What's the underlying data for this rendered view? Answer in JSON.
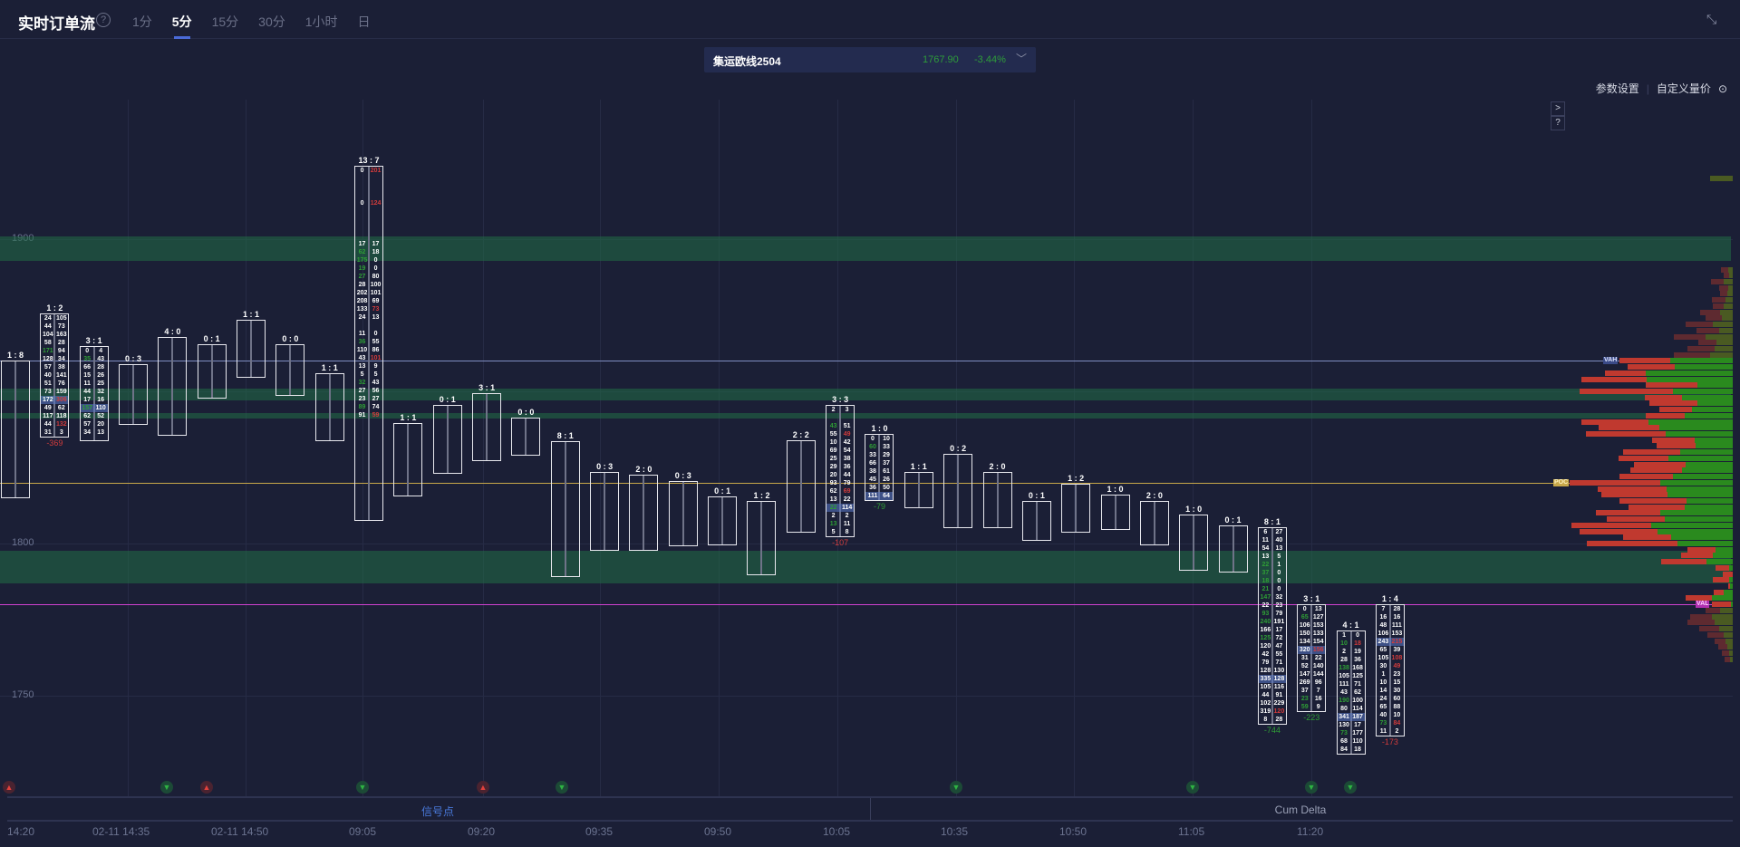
{
  "header": {
    "title": "实时订单流",
    "help": "?",
    "tabs": [
      {
        "label": "1分"
      },
      {
        "label": "5分",
        "active": true
      },
      {
        "label": "15分"
      },
      {
        "label": "30分"
      },
      {
        "label": "1小时"
      },
      {
        "label": "日"
      }
    ],
    "shrink_icon": "compress-icon"
  },
  "instrument": {
    "name": "集运欧线2504",
    "price": "1767.90",
    "change": "-3.44%",
    "price_color": "#2e9c3a"
  },
  "links": {
    "params": "参数设置",
    "custom": "自定义量价",
    "custom_icon": "settings-circle-icon"
  },
  "side_buttons": [
    ">",
    "?"
  ],
  "y_axis": {
    "labels": [
      1900,
      1800,
      1750
    ]
  },
  "levels": {
    "vah": {
      "label": "VAH",
      "price": 1860,
      "color": "#7f8cc0"
    },
    "poc": {
      "label": "POC",
      "price": 1820,
      "color": "#c8a84a"
    },
    "val": {
      "label": "VAL",
      "price": 1780,
      "color": "#d040d0"
    }
  },
  "zones": [
    [
      1901,
      1893
    ],
    [
      1851,
      1847
    ],
    [
      1843,
      1841
    ],
    [
      1797.5,
      1787
    ]
  ],
  "candles": [
    {
      "hdr": "1 : 8",
      "hi": 1860,
      "lo": 1815
    },
    {
      "hdr": "1 : 2",
      "hi": 1875.5,
      "lo": 1844.5,
      "delta": "-369",
      "dc": "r",
      "rows": [
        [
          "24",
          "105"
        ],
        [
          "44",
          "73"
        ],
        [
          "104",
          "163"
        ],
        [
          "58",
          "28"
        ],
        [
          "171",
          "94",
          "g"
        ],
        [
          "128",
          "34"
        ],
        [
          "57",
          "38"
        ],
        [
          "40",
          "141"
        ],
        [
          "51",
          "76"
        ],
        [
          "73",
          "159"
        ],
        [
          "172",
          "306",
          "rp"
        ],
        [
          "49",
          "62"
        ],
        [
          "117",
          "118"
        ],
        [
          "44",
          "132",
          "r"
        ],
        [
          "31",
          "3"
        ]
      ]
    },
    {
      "hdr": "3 : 1",
      "hi": 1865,
      "lo": 1833.5,
      "rows": [
        [
          "0",
          "4"
        ],
        [
          "35",
          "43",
          "g"
        ],
        [
          "66",
          "28"
        ],
        [
          "15",
          "26"
        ],
        [
          "11",
          "25"
        ],
        [
          "44",
          "32"
        ],
        [
          "17",
          "16"
        ],
        [
          "157",
          "110",
          "gp"
        ],
        [
          "62",
          "52"
        ],
        [
          "57",
          "20"
        ],
        [
          "34",
          "13"
        ]
      ]
    },
    {
      "hdr": "0 : 3",
      "hi": 1859,
      "lo": 1839
    },
    {
      "hdr": "4 : 0",
      "hi": 1868,
      "lo": 1835.5
    },
    {
      "hdr": "0 : 1",
      "hi": 1865.5,
      "lo": 1847.5
    },
    {
      "hdr": "1 : 1",
      "hi": 1873.5,
      "lo": 1854.5
    },
    {
      "hdr": "0 : 0",
      "hi": 1865.5,
      "lo": 1848.5
    },
    {
      "hdr": "1 : 1",
      "hi": 1856,
      "lo": 1833.5
    },
    {
      "hdr": "13 : 7",
      "hi": 1924,
      "lo": 1807.5,
      "rows": [
        [
          "0",
          "201",
          "r"
        ],
        [
          "",
          ""
        ],
        [
          "",
          ""
        ],
        [
          "",
          ""
        ],
        [
          "0",
          "124",
          "r"
        ],
        [
          "",
          ""
        ],
        [
          "",
          ""
        ],
        [
          "",
          ""
        ],
        [
          "",
          ""
        ],
        [
          "17",
          "17"
        ],
        [
          "62",
          "18",
          "g"
        ],
        [
          "175",
          "0",
          "g"
        ],
        [
          "19",
          "0",
          "g"
        ],
        [
          "27",
          "80",
          "g"
        ],
        [
          "28",
          "100"
        ],
        [
          "202",
          "101"
        ],
        [
          "208",
          "69"
        ],
        [
          "133",
          "73",
          "r"
        ],
        [
          "24",
          "13"
        ],
        [
          "",
          ""
        ],
        [
          "11",
          "0"
        ],
        [
          "36",
          "55",
          "g"
        ],
        [
          "110",
          "86"
        ],
        [
          "43",
          "101",
          "r"
        ],
        [
          "13",
          "9"
        ],
        [
          "5",
          "5"
        ],
        [
          "32",
          "43",
          "g"
        ],
        [
          "27",
          "56"
        ],
        [
          "23",
          "27"
        ],
        [
          "89",
          "74",
          "g"
        ],
        [
          "91",
          "59",
          "r"
        ]
      ]
    },
    {
      "hdr": "1 : 1",
      "hi": 1839.5,
      "lo": 1815.5
    },
    {
      "hdr": "0 : 1",
      "hi": 1845.5,
      "lo": 1823
    },
    {
      "hdr": "3 : 1",
      "hi": 1849.5,
      "lo": 1827
    },
    {
      "hdr": "0 : 0",
      "hi": 1841.5,
      "lo": 1829
    },
    {
      "hdr": "8 : 1",
      "hi": 1833.5,
      "lo": 1789
    },
    {
      "hdr": "0 : 3",
      "hi": 1823.5,
      "lo": 1797.5
    },
    {
      "hdr": "2 : 0",
      "hi": 1822.5,
      "lo": 1797.5
    },
    {
      "hdr": "0 : 3",
      "hi": 1820.5,
      "lo": 1799
    },
    {
      "hdr": "0 : 1",
      "hi": 1815.5,
      "lo": 1799.5
    },
    {
      "hdr": "1 : 2",
      "hi": 1814,
      "lo": 1789.5
    },
    {
      "hdr": "2 : 2",
      "hi": 1834,
      "lo": 1803.5
    },
    {
      "hdr": "3 : 3",
      "hi": 1845.5,
      "lo": 1813.5,
      "delta": "-107",
      "dc": "r",
      "rows": [
        [
          "2",
          "3"
        ],
        [
          "",
          ""
        ],
        [
          "43",
          "51",
          "g"
        ],
        [
          "55",
          "49",
          "r"
        ],
        [
          "10",
          "42"
        ],
        [
          "69",
          "54"
        ],
        [
          "25",
          "38"
        ],
        [
          "29",
          "36"
        ],
        [
          "20",
          "44"
        ],
        [
          "93",
          "79"
        ],
        [
          "62",
          "69",
          "r"
        ],
        [
          "13",
          "22"
        ],
        [
          "22",
          "114",
          "gp"
        ],
        [
          "2",
          "2"
        ],
        [
          "13",
          "11",
          "g"
        ],
        [
          "5",
          "8"
        ]
      ]
    },
    {
      "hdr": "1 : 0",
      "hi": 1836,
      "lo": 1819,
      "delta": "-79",
      "dc": "g",
      "rows": [
        [
          "0",
          "10"
        ],
        [
          "60",
          "33",
          "g"
        ],
        [
          "33",
          "29"
        ],
        [
          "66",
          "37"
        ],
        [
          "38",
          "61"
        ],
        [
          "45",
          "26"
        ],
        [
          "36",
          "50"
        ],
        [
          "111",
          "64",
          "p"
        ]
      ]
    },
    {
      "hdr": "1 : 1",
      "hi": 1823.5,
      "lo": 1811.5
    },
    {
      "hdr": "0 : 2",
      "hi": 1829.5,
      "lo": 1805
    },
    {
      "hdr": "2 : 0",
      "hi": 1823.5,
      "lo": 1805
    },
    {
      "hdr": "0 : 1",
      "hi": 1814,
      "lo": 1801
    },
    {
      "hdr": "1 : 2",
      "hi": 1819.5,
      "lo": 1803.5
    },
    {
      "hdr": "1 : 0",
      "hi": 1816,
      "lo": 1804.5
    },
    {
      "hdr": "2 : 0",
      "hi": 1814,
      "lo": 1799.5
    },
    {
      "hdr": "1 : 0",
      "hi": 1809.5,
      "lo": 1791
    },
    {
      "hdr": "0 : 1",
      "hi": 1806,
      "lo": 1790.5
    },
    {
      "hdr": "8 : 1",
      "hi": 1805.5,
      "lo": 1757.5,
      "delta": "-744",
      "dc": "g",
      "rows": [
        [
          "6",
          "27"
        ],
        [
          "11",
          "40"
        ],
        [
          "54",
          "13"
        ],
        [
          "13",
          "5"
        ],
        [
          "22",
          "1",
          "g"
        ],
        [
          "37",
          "0",
          "g"
        ],
        [
          "18",
          "0",
          "g"
        ],
        [
          "21",
          "0",
          "g"
        ],
        [
          "147",
          "32",
          "g"
        ],
        [
          "22",
          "23"
        ],
        [
          "93",
          "79",
          "g"
        ],
        [
          "240",
          "191",
          "g"
        ],
        [
          "166",
          "17"
        ],
        [
          "125",
          "72",
          "g"
        ],
        [
          "120",
          "47"
        ],
        [
          "42",
          "55"
        ],
        [
          "79",
          "71"
        ],
        [
          "128",
          "130"
        ],
        [
          "335",
          "128",
          "p"
        ],
        [
          "105",
          "116"
        ],
        [
          "44",
          "91"
        ],
        [
          "102",
          "229"
        ],
        [
          "319",
          "120",
          "r"
        ],
        [
          "8",
          "28"
        ]
      ]
    },
    {
      "hdr": "3 : 1",
      "hi": 1780,
      "lo": 1753.5,
      "delta": "-223",
      "dc": "g",
      "rows": [
        [
          "0",
          "13"
        ],
        [
          "65",
          "127",
          "g"
        ],
        [
          "106",
          "153"
        ],
        [
          "150",
          "133"
        ],
        [
          "134",
          "154"
        ],
        [
          "320",
          "156",
          "rp"
        ],
        [
          "31",
          "22"
        ],
        [
          "52",
          "140"
        ],
        [
          "147",
          "144"
        ],
        [
          "269",
          "96"
        ],
        [
          "37",
          "7"
        ],
        [
          "23",
          "16",
          "g"
        ],
        [
          "59",
          "9",
          "g"
        ]
      ]
    },
    {
      "hdr": "4 : 1",
      "hi": 1771.5,
      "lo": 1741,
      "rows": [
        [
          "1",
          "0"
        ],
        [
          "10",
          "18",
          "gr"
        ],
        [
          "2",
          "19"
        ],
        [
          "28",
          "36"
        ],
        [
          "138",
          "168",
          "g"
        ],
        [
          "105",
          "125"
        ],
        [
          "111",
          "71"
        ],
        [
          "43",
          "62"
        ],
        [
          "190",
          "100",
          "g"
        ],
        [
          "80",
          "114"
        ],
        [
          "341",
          "187",
          "p"
        ],
        [
          "130",
          "17"
        ],
        [
          "73",
          "177",
          "g"
        ],
        [
          "68",
          "110"
        ],
        [
          "84",
          "18"
        ]
      ]
    },
    {
      "hdr": "1 : 4",
      "hi": 1780,
      "lo": 1747.5,
      "delta": "-173",
      "dc": "r",
      "rows": [
        [
          "7",
          "28"
        ],
        [
          "16",
          "16"
        ],
        [
          "48",
          "111"
        ],
        [
          "106",
          "153"
        ],
        [
          "243",
          "215",
          "rp"
        ],
        [
          "65",
          "39"
        ],
        [
          "105",
          "108",
          "r"
        ],
        [
          "30",
          "49",
          "r"
        ],
        [
          "1",
          "23"
        ],
        [
          "10",
          "15"
        ],
        [
          "14",
          "30"
        ],
        [
          "24",
          "60"
        ],
        [
          "65",
          "88"
        ],
        [
          "40",
          "10"
        ],
        [
          "73",
          "84",
          "gr"
        ],
        [
          "11",
          "2"
        ]
      ]
    }
  ],
  "profile": [
    [
      1920,
      0,
      25
    ],
    [
      1890,
      8,
      5
    ],
    [
      1888,
      6,
      4
    ],
    [
      1886,
      14,
      10
    ],
    [
      1884,
      10,
      5
    ],
    [
      1882,
      8,
      6
    ],
    [
      1880,
      15,
      8
    ],
    [
      1878,
      12,
      10
    ],
    [
      1876,
      22,
      14
    ],
    [
      1874,
      18,
      12
    ],
    [
      1872,
      30,
      22
    ],
    [
      1870,
      25,
      15
    ],
    [
      1868,
      35,
      30
    ],
    [
      1866,
      20,
      18
    ],
    [
      1864,
      30,
      20
    ],
    [
      1862,
      40,
      25
    ],
    [
      1860,
      56,
      69
    ],
    [
      1858,
      52,
      64
    ],
    [
      1856,
      45,
      96
    ],
    [
      1854,
      72,
      95
    ],
    [
      1852,
      57,
      39
    ],
    [
      1850,
      103,
      66
    ],
    [
      1848,
      41,
      56
    ],
    [
      1846,
      53,
      39
    ],
    [
      1844,
      36,
      45
    ],
    [
      1842,
      43,
      53
    ],
    [
      1840,
      74,
      93
    ],
    [
      1838,
      67,
      81
    ],
    [
      1836,
      88,
      74
    ],
    [
      1834,
      47,
      42
    ],
    [
      1832,
      43,
      41
    ],
    [
      1830,
      63,
      58
    ],
    [
      1828,
      55,
      71
    ],
    [
      1826,
      57,
      52
    ],
    [
      1824,
      57,
      56
    ],
    [
      1822,
      59,
      66
    ],
    [
      1820,
      100,
      80
    ],
    [
      1818,
      76,
      73
    ],
    [
      1816,
      73,
      72
    ],
    [
      1814,
      74,
      51
    ],
    [
      1812,
      62,
      53
    ],
    [
      1810,
      71,
      80
    ],
    [
      1808,
      64,
      75
    ],
    [
      1806,
      88,
      90
    ],
    [
      1804,
      86,
      83
    ],
    [
      1802,
      53,
      68
    ],
    [
      1800,
      100,
      61
    ],
    [
      1798,
      31,
      19
    ],
    [
      1796,
      35,
      22
    ],
    [
      1794,
      50,
      29
    ],
    [
      1792,
      15,
      4
    ],
    [
      1790,
      11,
      0
    ],
    [
      1788,
      18,
      4
    ],
    [
      1786,
      2,
      3
    ],
    [
      1784,
      11,
      10
    ],
    [
      1782,
      29,
      23
    ],
    [
      1780,
      21,
      2
    ],
    [
      1778,
      16,
      14
    ],
    [
      1776,
      24,
      23
    ],
    [
      1774,
      30,
      20
    ],
    [
      1772,
      22,
      15
    ],
    [
      1770,
      18,
      10
    ],
    [
      1768,
      12,
      8
    ],
    [
      1766,
      10,
      6
    ],
    [
      1764,
      8,
      4
    ],
    [
      1762,
      6,
      3
    ]
  ],
  "signals": [
    {
      "type": "up",
      "icon": "signal-up-red-icon"
    },
    {
      "type": "dn",
      "icon": "signal-green-icon"
    },
    {
      "type": "up",
      "icon": "signal-up-red-icon"
    },
    {
      "type": "dn",
      "icon": "signal-green-icon"
    },
    {
      "type": "up",
      "icon": "signal-up-red-icon"
    },
    {
      "type": "dn",
      "icon": "signal-green-icon"
    },
    {
      "type": "dn",
      "icon": "signal-down-green-icon"
    },
    {
      "type": "dn",
      "icon": "signal-down-green-icon"
    },
    {
      "type": "dn",
      "icon": "signal-down-green-icon"
    },
    {
      "type": "dn",
      "icon": "signal-green-icon"
    }
  ],
  "bottom_tabs": {
    "signals": "信号点",
    "cum_delta": "Cum Delta",
    "active_color": "#4a7adc"
  },
  "time_axis": [
    "14:20",
    "02-11 14:35",
    "02-11 14:50",
    "09:05",
    "09:20",
    "09:35",
    "09:50",
    "10:05",
    "10:35",
    "10:50",
    "11:05",
    "11:20"
  ]
}
